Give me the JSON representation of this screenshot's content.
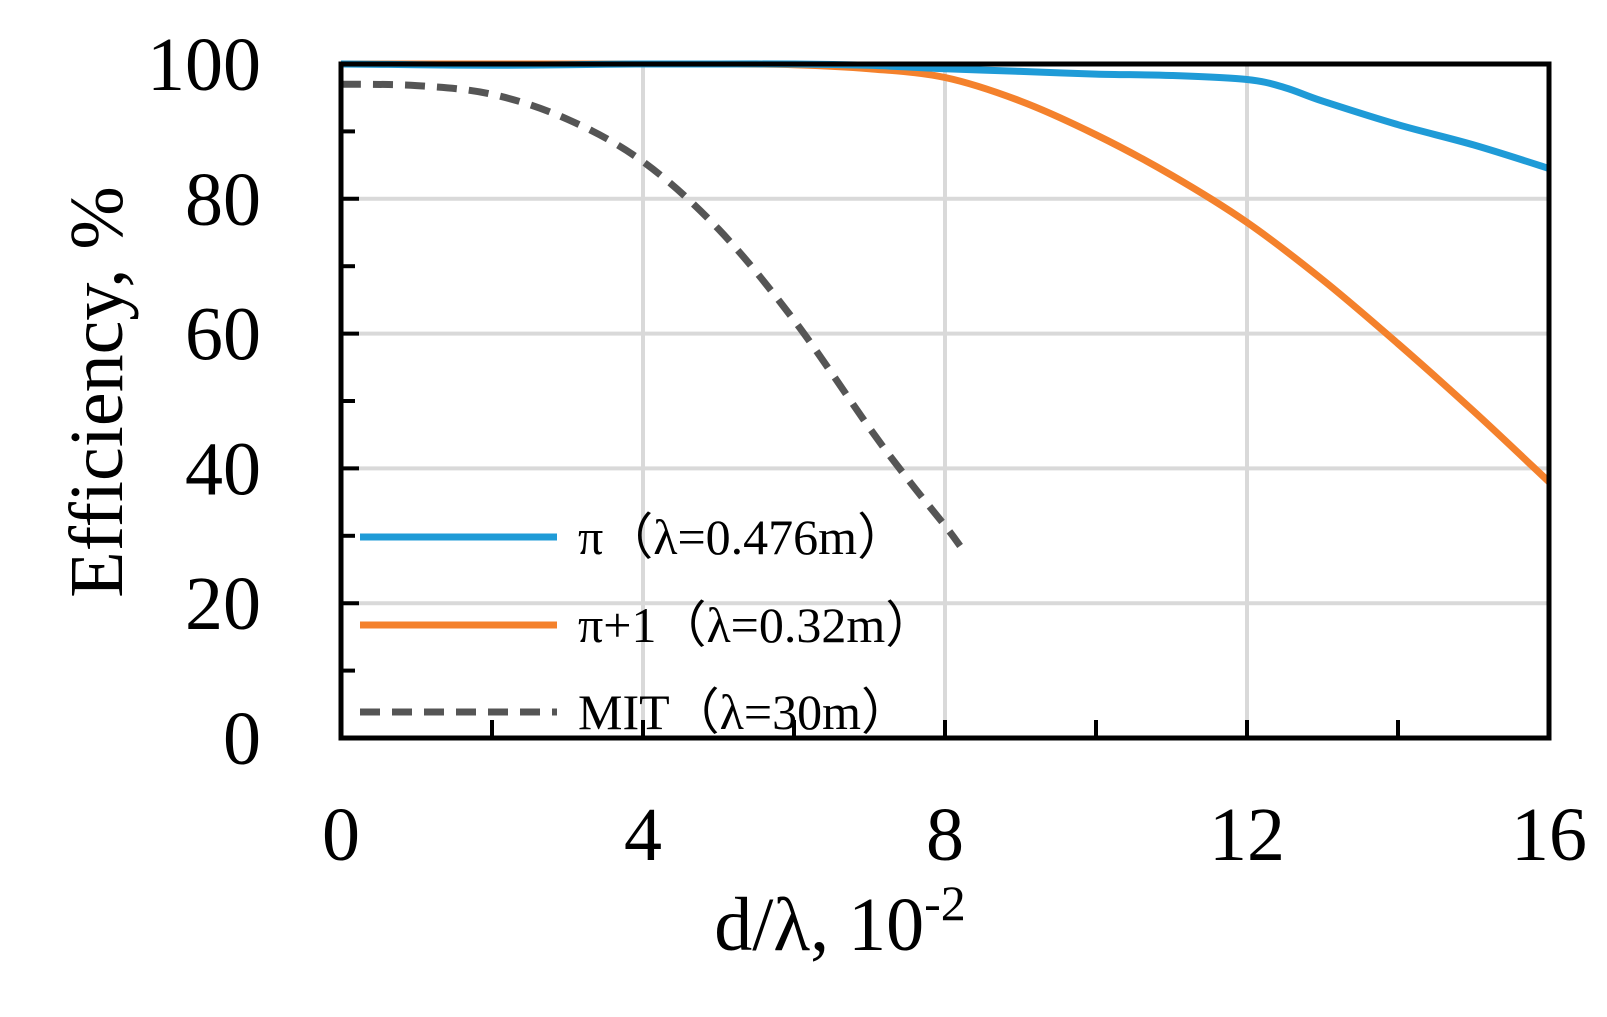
{
  "chart_data": {
    "type": "line",
    "title": "",
    "xlabel": "d/λ, 10",
    "xlabel_superscript": "-2",
    "ylabel": "Efficiency, %",
    "xlim": [
      0,
      16
    ],
    "ylim": [
      0,
      100
    ],
    "x_ticks": [
      0,
      4,
      8,
      12,
      16
    ],
    "x_tick_labels": [
      "0",
      "4",
      "8",
      "12",
      "16"
    ],
    "y_ticks": [
      0,
      20,
      40,
      60,
      80,
      100
    ],
    "y_tick_labels": [
      "0",
      "20",
      "40",
      "60",
      "80",
      "100"
    ],
    "grid": true,
    "legend_position": "bottom-left",
    "series": [
      {
        "name": "π（λ=0.476m）",
        "color": "#1f9bd7",
        "style": "solid",
        "x": [
          0,
          1,
          2,
          3,
          4,
          5,
          6,
          7,
          8,
          9,
          10,
          11,
          12,
          12.5,
          13,
          14,
          15,
          16
        ],
        "y": [
          100,
          99.9,
          99.8,
          99.9,
          100,
          100,
          100,
          99.8,
          99.3,
          98.9,
          98.5,
          98.3,
          97.7,
          96.5,
          94.5,
          91.0,
          88.0,
          84.5
        ]
      },
      {
        "name": "π+1（λ=0.32m）",
        "color": "#f4812c",
        "style": "solid",
        "x": [
          0,
          1,
          2,
          3,
          4,
          5,
          6,
          7,
          8,
          9,
          10,
          11,
          12,
          13,
          14,
          15,
          16
        ],
        "y": [
          100,
          100,
          100,
          100,
          100,
          100,
          99.9,
          99.3,
          98.0,
          94.5,
          89.5,
          83.5,
          76.5,
          68.0,
          58.5,
          48.5,
          38.0
        ]
      },
      {
        "name": "MIT（λ=30m）",
        "color": "#555555",
        "style": "dashed",
        "x": [
          0,
          1,
          2,
          3,
          4,
          5,
          6,
          7,
          7.5,
          8,
          8.2
        ],
        "y": [
          97,
          96.8,
          95.5,
          91.8,
          85.5,
          75.5,
          62.0,
          46.0,
          38.5,
          31.5,
          28.5
        ]
      }
    ]
  }
}
